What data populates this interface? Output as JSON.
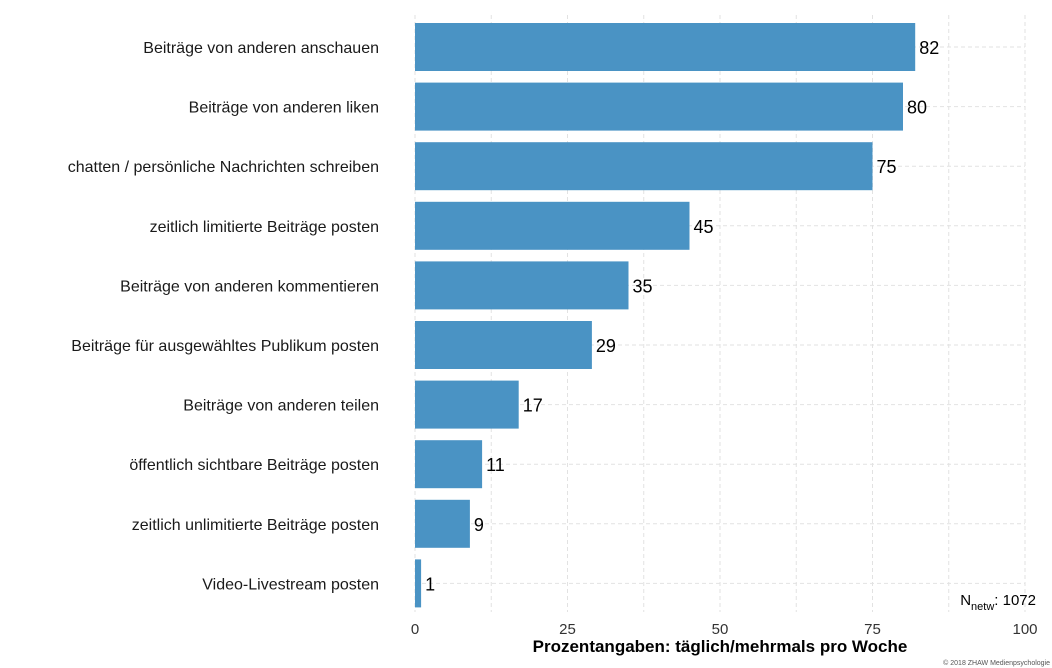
{
  "chart_data": {
    "type": "bar",
    "orientation": "horizontal",
    "categories": [
      "Beiträge von anderen anschauen",
      "Beiträge von anderen liken",
      "chatten / persönliche Nachrichten schreiben",
      "zeitlich limitierte Beiträge posten",
      "Beiträge von anderen kommentieren",
      "Beiträge für ausgewähltes Publikum posten",
      "Beiträge von anderen teilen",
      "öffentlich sichtbare Beiträge posten",
      "zeitlich unlimitierte Beiträge posten",
      "Video-Livestream posten"
    ],
    "values": [
      82,
      80,
      75,
      45,
      35,
      29,
      17,
      11,
      9,
      1
    ],
    "xlabel": "Prozentangaben: täglich/mehrmals pro Woche",
    "xlim": [
      0,
      100
    ],
    "xticks": [
      0,
      25,
      50,
      75,
      100
    ],
    "grid": true,
    "bar_color": "#4a93c4",
    "annotation": {
      "n_prefix": "N",
      "n_subscript": "netw",
      "n_value": ": 1072"
    },
    "copyright": "© 2018 ZHAW Medienpsychologie"
  }
}
